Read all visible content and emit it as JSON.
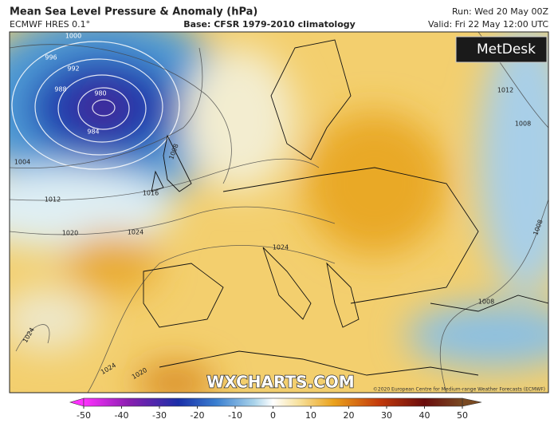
{
  "header": {
    "title": "Mean Sea Level Pressure & Anomaly (hPa)",
    "model": "ECMWF HRES 0.1°",
    "base": "Base: CFSR 1979-2010 climatology",
    "run": "Run: Wed 20 May 00Z",
    "valid": "Valid: Fri 22 May 12:00 UTC"
  },
  "logo": "MetDesk",
  "map": {
    "contour_labels": [
      1000,
      996,
      992,
      988,
      980,
      984,
      1004,
      1008,
      1012,
      1016,
      1020,
      1024,
      1024,
      1012,
      1008,
      1008,
      1008,
      1024,
      1024,
      1020
    ],
    "watermark": "WXCHARTS.COM",
    "copyright": "©2020 European Centre for Medium-range Weather Forecasts (ECMWF)"
  },
  "colorbar": {
    "lim": [
      -50,
      50
    ],
    "ticks": [
      -50,
      -40,
      -30,
      -20,
      -10,
      0,
      10,
      20,
      30,
      40,
      50
    ]
  }
}
